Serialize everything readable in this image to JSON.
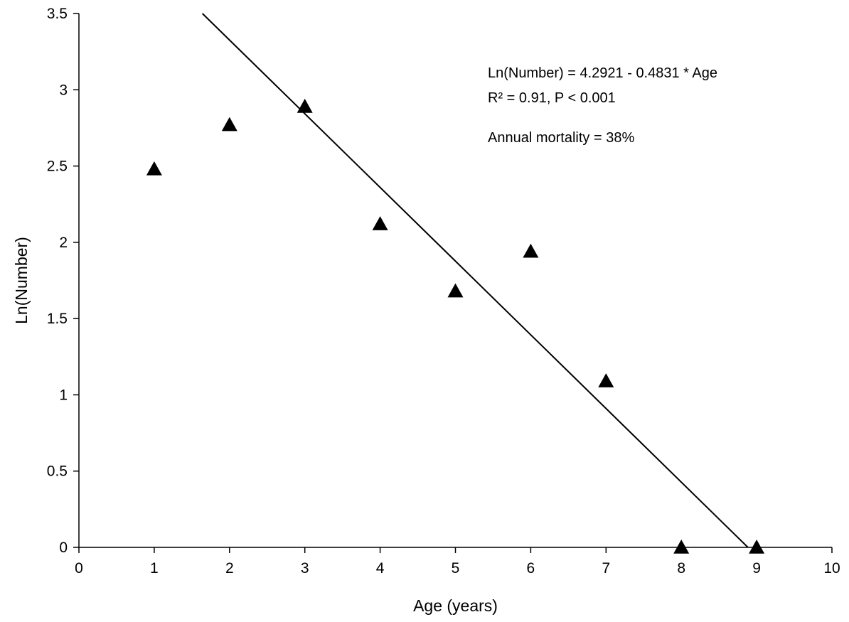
{
  "chart_data": {
    "type": "scatter",
    "xlabel": "Age (years)",
    "ylabel": "Ln(Number)",
    "xlim": [
      0,
      10
    ],
    "ylim": [
      0,
      3.5
    ],
    "xticks": [
      "0",
      "1",
      "2",
      "3",
      "4",
      "5",
      "6",
      "7",
      "8",
      "9",
      "10"
    ],
    "yticks": [
      "0",
      "0.5",
      "1",
      "1.5",
      "2",
      "2.5",
      "3",
      "3.5"
    ],
    "grid": false,
    "marker": "filled-triangle",
    "marker_color": "#000000",
    "points": [
      {
        "x": 1,
        "y": 2.48
      },
      {
        "x": 2,
        "y": 2.77
      },
      {
        "x": 3,
        "y": 2.89
      },
      {
        "x": 4,
        "y": 2.12
      },
      {
        "x": 5,
        "y": 1.68
      },
      {
        "x": 6,
        "y": 1.94
      },
      {
        "x": 7,
        "y": 1.09
      },
      {
        "x": 8,
        "y": 0
      },
      {
        "x": 9,
        "y": 0
      }
    ],
    "fit_line": {
      "intercept": 4.2921,
      "slope": -0.4831
    },
    "annotations": [
      "Ln(Number) = 4.2921 - 0.4831 * Age",
      "R² = 0.91, P < 0.001",
      "Annual mortality = 38%"
    ]
  }
}
